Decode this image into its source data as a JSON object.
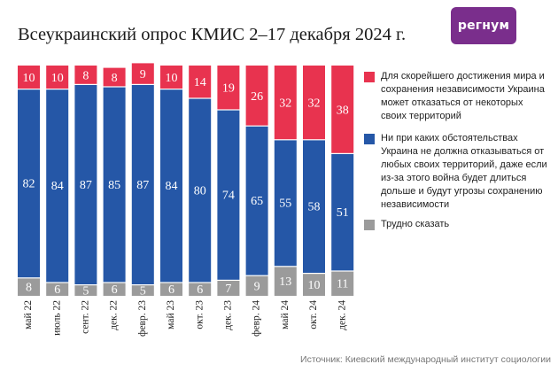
{
  "header": {
    "title": "Всеукраинский опрос КМИС 2–17 декабря 2024 г.",
    "logo_text": "регнум",
    "logo_color": "#7a2e8c"
  },
  "chart_data": {
    "type": "bar",
    "stacked": true,
    "orientation": "vertical",
    "categories": [
      "май 22",
      "июль 22",
      "сент. 22",
      "дек. 22",
      "февр. 23",
      "май 23",
      "окт. 23",
      "дек. 23",
      "февр. 24",
      "май 24",
      "окт. 24",
      "дек. 24"
    ],
    "series": [
      {
        "name": "Трудно сказать",
        "color": "#9b9b9b",
        "values": [
          8,
          6,
          5,
          6,
          5,
          6,
          6,
          7,
          9,
          13,
          10,
          11
        ]
      },
      {
        "name": "Ни при каких обстоятельствах Украина не должна отказываться от любых своих территорий, даже если из-за этого война будет длиться дольше и будут угрозы сохранению независимости",
        "color": "#2557a7",
        "values": [
          82,
          84,
          87,
          85,
          87,
          84,
          80,
          74,
          65,
          55,
          58,
          51
        ]
      },
      {
        "name": "Для скорейшего достижения мира и сохранения независимости Украина может отказаться от некоторых своих территорий",
        "color": "#e8334f",
        "values": [
          10,
          10,
          8,
          8,
          9,
          10,
          14,
          19,
          26,
          32,
          32,
          38
        ]
      }
    ],
    "ylim": [
      0,
      100
    ],
    "unit": "%",
    "title": "Всеукраинский опрос КМИС 2–17 декабря 2024 г.",
    "legend_position": "right",
    "source": "Источник: Киевский международный институт социологии"
  }
}
